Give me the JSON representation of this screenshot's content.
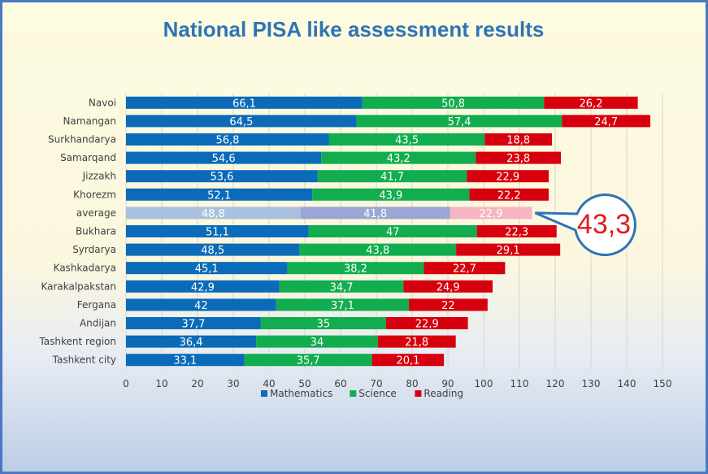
{
  "chart_data": {
    "type": "bar",
    "orientation": "horizontal",
    "stacked": true,
    "title": "National PISA like assessment results",
    "categories": [
      "Navoi",
      "Namangan",
      "Surkhandarya",
      "Samarqand",
      "Jizzakh",
      "Khorezm",
      "average",
      "Bukhara",
      "Syrdarya",
      "Kashkadarya",
      "Karakalpakstan",
      "Fergana",
      "Andijan",
      "Tashkent region",
      "Tashkent city"
    ],
    "series": [
      {
        "name": "Mathematics",
        "color": "#0b6bb8",
        "values": [
          66.1,
          64.5,
          56.8,
          54.6,
          53.6,
          52.1,
          48.8,
          51.1,
          48.5,
          45.1,
          42.9,
          42,
          37.7,
          36.4,
          33.1
        ],
        "labels": [
          "66,1",
          "64,5",
          "56,8",
          "54,6",
          "53,6",
          "52,1",
          "48,8",
          "51,1",
          "48,5",
          "45,1",
          "42,9",
          "42",
          "37,7",
          "36,4",
          "33,1"
        ]
      },
      {
        "name": "Science",
        "color": "#12ad4f",
        "values": [
          50.8,
          57.4,
          43.5,
          43.2,
          41.7,
          43.9,
          41.8,
          47,
          43.8,
          38.2,
          34.7,
          37.1,
          35,
          34,
          35.7
        ],
        "labels": [
          "50,8",
          "57,4",
          "43,5",
          "43,2",
          "41,7",
          "43,9",
          "41,8",
          "47",
          "43,8",
          "38,2",
          "34,7",
          "37,1",
          "35",
          "34",
          "35,7"
        ]
      },
      {
        "name": "Reading",
        "color": "#d6000e",
        "values": [
          26.2,
          24.7,
          18.8,
          23.8,
          22.9,
          22.2,
          22.9,
          22.3,
          29.1,
          22.7,
          24.9,
          22,
          22.9,
          21.8,
          20.1
        ],
        "labels": [
          "26,2",
          "24,7",
          "18,8",
          "23,8",
          "22,9",
          "22,2",
          "22,9",
          "22,3",
          "29,1",
          "22,7",
          "24,9",
          "22",
          "22,9",
          "21,8",
          "20,1"
        ]
      }
    ],
    "highlight": {
      "category": "average",
      "colors": [
        "#a9c1dc",
        "#9ba5d6",
        "#f7b4c2"
      ]
    },
    "xlim": [
      0,
      150
    ],
    "xticks": [
      0,
      10,
      20,
      30,
      40,
      50,
      60,
      70,
      80,
      90,
      100,
      110,
      120,
      130,
      140,
      150
    ],
    "grid": true,
    "legend": "bottom",
    "callout": {
      "text": "43,3",
      "target": "average"
    }
  }
}
